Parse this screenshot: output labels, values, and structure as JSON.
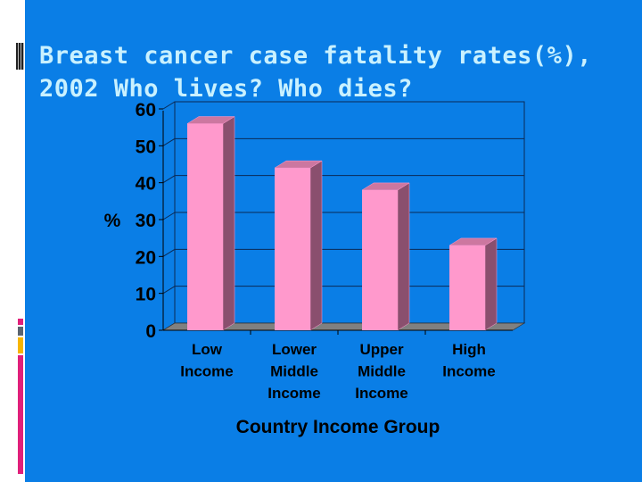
{
  "slide": {
    "title_line1": "Breast cancer case fatality rates(%),",
    "title_line2": "2002 Who lives? Who dies?"
  },
  "colors": {
    "background": "#0a7ee6",
    "bar_front": "#ff99cc",
    "bar_side": "#8a4f6e",
    "bar_top": "#cc77a0",
    "floor": "#808080",
    "accent_pink": "#e0207a",
    "accent_gray": "#5a6470",
    "accent_yellow": "#f7b500"
  },
  "chart_data": {
    "type": "bar",
    "title": "Breast cancer case fatality rates(%), 2002 Who lives? Who dies?",
    "categories": [
      [
        "Low",
        "Income"
      ],
      [
        "Lower",
        "Middle",
        "Income"
      ],
      [
        "Upper",
        "Middle",
        "Income"
      ],
      [
        "High",
        "Income"
      ]
    ],
    "values": [
      56,
      44,
      38,
      23
    ],
    "xlabel": "Country Income Group",
    "ylabel": "%",
    "ylim": [
      0,
      60
    ],
    "yticks": [
      "0",
      "10",
      "20",
      "30",
      "40",
      "50",
      "60"
    ],
    "grid": true,
    "style": "3d-column"
  }
}
